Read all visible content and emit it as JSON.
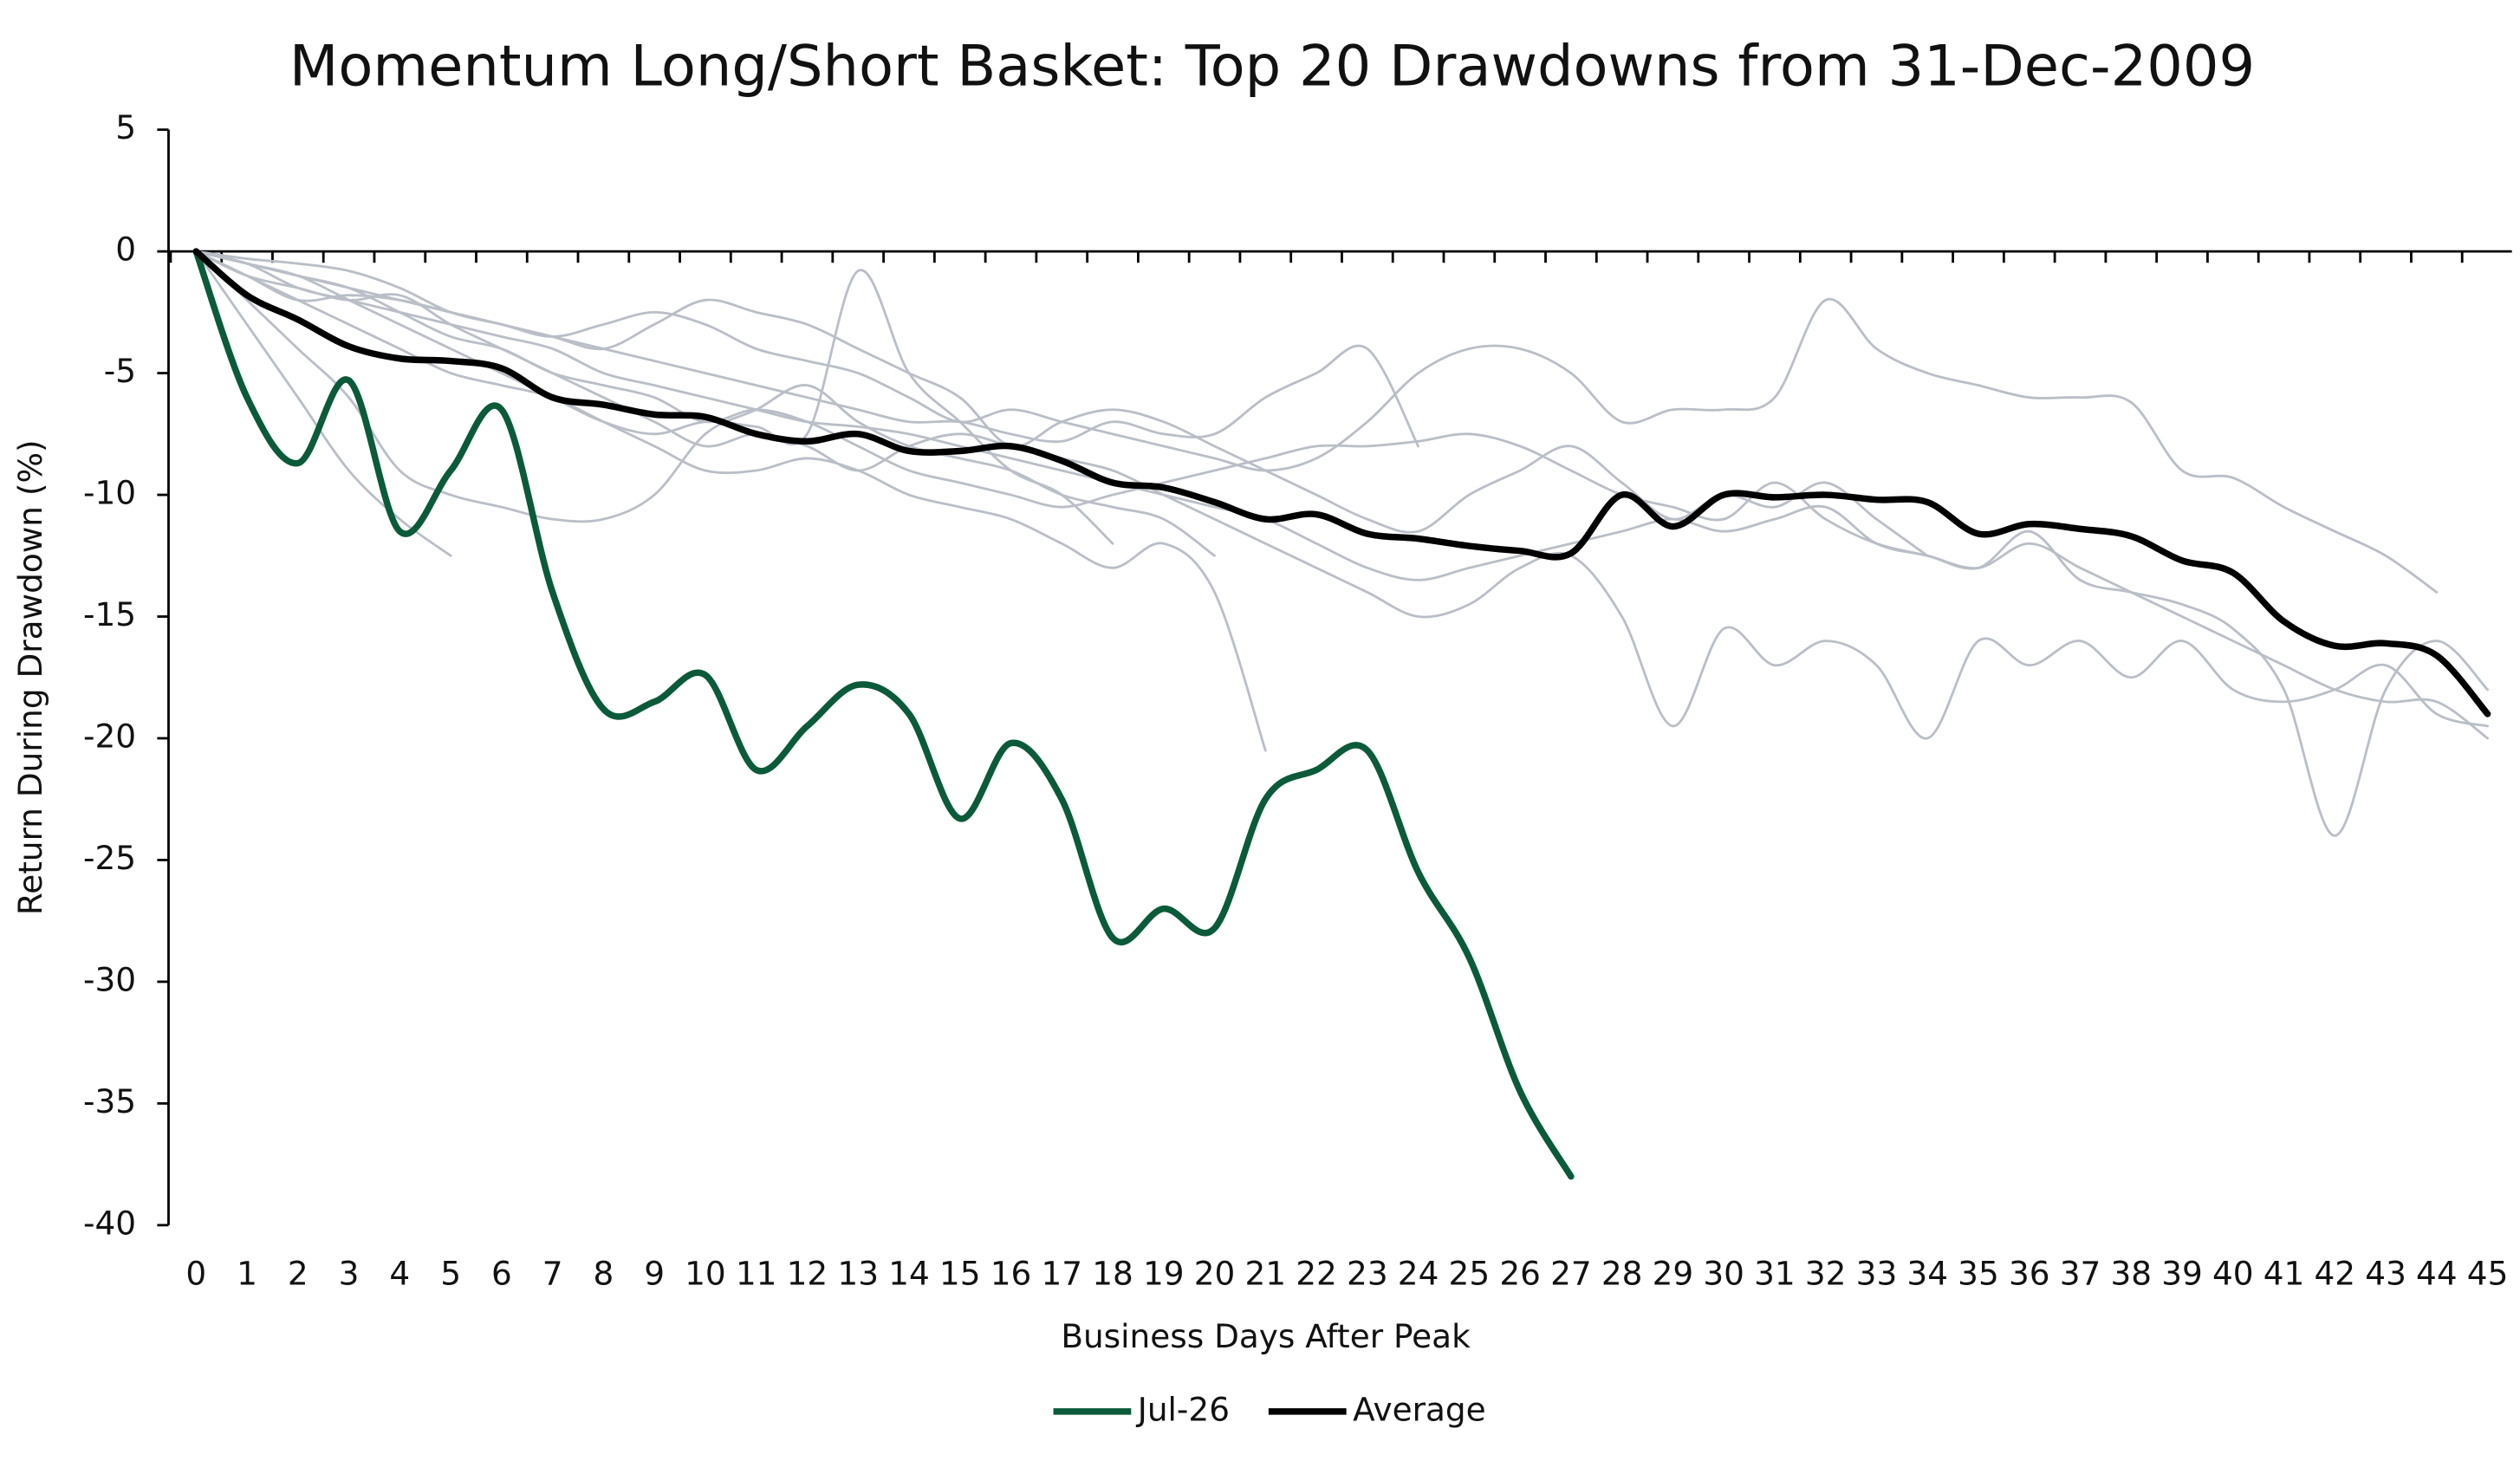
{
  "chart_data": {
    "type": "line",
    "title": "Momentum Long/Short Basket: Top 20 Drawdowns from 31-Dec-2009",
    "x_label": "Business Days After Peak",
    "y_label": "Return During Drawdown (%)",
    "x": [
      0,
      1,
      2,
      3,
      4,
      5,
      6,
      7,
      8,
      9,
      10,
      11,
      12,
      13,
      14,
      15,
      16,
      17,
      18,
      19,
      20,
      21,
      22,
      23,
      24,
      25,
      26,
      27,
      28,
      29,
      30,
      31,
      32,
      33,
      34,
      35,
      36,
      37,
      38,
      39,
      40,
      41,
      42,
      43,
      44,
      45
    ],
    "xlim": [
      0,
      45
    ],
    "xticks": [
      0,
      1,
      2,
      3,
      4,
      5,
      6,
      7,
      8,
      9,
      10,
      11,
      12,
      13,
      14,
      15,
      16,
      17,
      18,
      19,
      20,
      21,
      22,
      23,
      24,
      25,
      26,
      27,
      28,
      29,
      30,
      31,
      32,
      33,
      34,
      35,
      36,
      37,
      38,
      39,
      40,
      41,
      42,
      43,
      44,
      45
    ],
    "ylim": [
      -40,
      5
    ],
    "yticks": [
      5,
      0,
      -5,
      -10,
      -15,
      -20,
      -25,
      -30,
      -35,
      -40
    ],
    "legend": "bottom",
    "series": [
      {
        "color": "#b9bec7",
        "values": [
          0,
          -0.5,
          -1.5,
          -2,
          -2.5,
          -3,
          -3.5,
          -4,
          -5,
          -5.5,
          -6,
          -6.5,
          -7,
          -7.2,
          -7.5,
          -8,
          -8.5,
          -9,
          -9.5,
          -10,
          -10.5,
          -11,
          -12,
          -13,
          -13.5,
          -13,
          -12.5,
          -12,
          -11.5,
          -11,
          -11.5,
          -11,
          -10.5,
          -12,
          -12.5,
          -13,
          -12,
          -13,
          -14,
          -15,
          -16,
          -17,
          -18,
          -18.5,
          -18.5,
          -20
        ]
      },
      {
        "color": "#b9bec7",
        "values": [
          0,
          -1,
          -2,
          -1.8,
          -2,
          -2.5,
          -3,
          -3.5,
          -3,
          -2.5,
          -3,
          -4,
          -4.5,
          -5,
          -6,
          -7,
          -6.5,
          -7,
          -7.5,
          -8,
          -8.5,
          -9,
          -8.5,
          -7,
          -5,
          -4,
          -4,
          -5,
          -7,
          -6.5,
          -6.5,
          -6,
          -2,
          -4,
          -5,
          -5.5,
          -6,
          -6,
          -6.2,
          -9,
          -9.3,
          -10.5,
          -11.5,
          -12.5,
          -14,
          null
        ]
      },
      {
        "color": "#b9bec7",
        "values": [
          0,
          -1,
          -1.5,
          -2,
          -1.8,
          -3,
          -4,
          -5,
          -6,
          -7,
          -8,
          -7.5,
          -8,
          -9,
          -8,
          -7.5,
          -8,
          -8.5,
          -9,
          -10,
          -11,
          -12,
          -13,
          -14,
          -15,
          -14.5,
          -13,
          -12.5,
          -15,
          -19.5,
          -15.5,
          -17,
          -16,
          -17,
          -20,
          -16,
          -17,
          -16,
          -17.5,
          -16,
          -18,
          -18.5,
          -18,
          -17,
          -19,
          -19.5
        ]
      },
      {
        "color": "#b9bec7",
        "values": [
          0,
          -0.5,
          -1,
          -1.5,
          -2.5,
          -3.5,
          -4,
          -5,
          -5.5,
          -6,
          -7,
          -6.5,
          -7,
          -8,
          -9,
          -9.5,
          -10,
          -10.5,
          -10,
          -9.5,
          -9,
          -8.5,
          -8,
          -8,
          -7.8,
          -7.5,
          -8,
          -9,
          -10,
          -10.5,
          -11,
          -9.5,
          -11,
          -12,
          -12.5,
          -13,
          -11.5,
          -13.5,
          -14,
          -14.5,
          -15.5,
          -18,
          -24,
          -18,
          -16,
          -18
        ]
      },
      {
        "color": "#b9bec7",
        "values": [
          0,
          -0.5,
          -1,
          -1.5,
          -2,
          -2.5,
          -3,
          -3.5,
          -4,
          -4.5,
          -5,
          -5.5,
          -6,
          -6.5,
          -7,
          -7,
          -7.5,
          -7.8,
          -7,
          -7.5,
          -7.5,
          -6,
          -5,
          -4,
          -8,
          null,
          null,
          null,
          null,
          null,
          null,
          null,
          null,
          null,
          null,
          null,
          null,
          null,
          null,
          null,
          null,
          null,
          null,
          null,
          null,
          null
        ]
      },
      {
        "color": "#b9bec7",
        "values": [
          0,
          -1,
          -2,
          -3,
          -4,
          -5,
          -5.5,
          -6,
          -7,
          -8,
          -9,
          -9,
          -8.5,
          -9,
          -10,
          -10.5,
          -11,
          -12,
          -13,
          -12,
          -14,
          -20.5,
          null,
          null,
          null,
          null,
          null,
          null,
          null,
          null,
          null,
          null,
          null,
          null,
          null,
          null,
          null,
          null,
          null,
          null,
          null,
          null,
          null,
          null,
          null,
          null
        ]
      },
      {
        "color": "#b9bec7",
        "values": [
          0,
          -2,
          -4,
          -6,
          -9,
          -10,
          -10.5,
          -11,
          -11,
          -10,
          -7.5,
          -6.5,
          -5.5,
          -7,
          -8,
          -8.5,
          -9,
          -10,
          -10.5,
          -11,
          -12.5,
          null,
          null,
          null,
          null,
          null,
          null,
          null,
          null,
          null,
          null,
          null,
          null,
          null,
          null,
          null,
          null,
          null,
          null,
          null,
          null,
          null,
          null,
          null,
          null,
          null
        ]
      },
      {
        "color": "#b9bec7",
        "values": [
          0,
          -3,
          -6,
          -9,
          -11,
          -12.5,
          null,
          null,
          null,
          null,
          null,
          null,
          null,
          null,
          null,
          null,
          null,
          null,
          null,
          null,
          null,
          null,
          null,
          null,
          null,
          null,
          null,
          null,
          null,
          null,
          null,
          null,
          null,
          null,
          null,
          null,
          null,
          null,
          null,
          null,
          null,
          null,
          null,
          null,
          null,
          null
        ]
      },
      {
        "color": "#b9bec7",
        "values": [
          0,
          -0.5,
          -1,
          -2,
          -3,
          -4,
          -5,
          -6,
          -7,
          -7.5,
          -7,
          -7.2,
          -7.5,
          -0.8,
          -5,
          -7,
          -9,
          -10,
          -12,
          null,
          null,
          null,
          null,
          null,
          null,
          null,
          null,
          null,
          null,
          null,
          null,
          null,
          null,
          null,
          null,
          null,
          null,
          null,
          null,
          null,
          null,
          null,
          null,
          null,
          null,
          null
        ]
      },
      {
        "color": "#b9bec7",
        "values": [
          0,
          -0.3,
          -0.5,
          -0.8,
          -1.5,
          -2.5,
          -3,
          -3.5,
          -4,
          -3,
          -2,
          -2.5,
          -3,
          -4,
          -5,
          -6,
          -8,
          -7,
          -6.5,
          -7,
          -8,
          -9,
          -10,
          -11,
          -11.5,
          -10,
          -9,
          -8,
          -9.5,
          -11,
          -10,
          -10.5,
          -9.5,
          -11,
          -12.5,
          null,
          null,
          null,
          null,
          null,
          null,
          null,
          null,
          null,
          null,
          null
        ]
      },
      {
        "name": "Jul-26",
        "color": "#0b5a3a",
        "width": 4,
        "values": [
          0,
          -6,
          -8.7,
          -5.3,
          -11.5,
          -9,
          -6.5,
          -14,
          -18.8,
          -18.5,
          -17.4,
          -21.3,
          -19.5,
          -17.8,
          -19,
          -23.3,
          -20.2,
          -22.5,
          -28.2,
          -27,
          -27.8,
          -22.5,
          -21.3,
          -20.5,
          -25.5,
          -29,
          -34.5,
          -38,
          null,
          null,
          null,
          null,
          null,
          null,
          null,
          null,
          null,
          null,
          null,
          null,
          null,
          null,
          null,
          null,
          null,
          null
        ]
      },
      {
        "name": "Average",
        "color": "#000000",
        "width": 4,
        "values": [
          0,
          -1.8,
          -2.8,
          -3.9,
          -4.4,
          -4.5,
          -4.8,
          -6,
          -6.3,
          -6.7,
          -6.8,
          -7.5,
          -7.8,
          -7.5,
          -8.2,
          -8.2,
          -8,
          -8.6,
          -9.5,
          -9.7,
          -10.3,
          -11,
          -10.8,
          -11.6,
          -11.8,
          -12.1,
          -12.3,
          -12.4,
          -10,
          -11.3,
          -10,
          -10.1,
          -10,
          -10.2,
          -10.3,
          -11.6,
          -11.2,
          -11.4,
          -11.7,
          -12.7,
          -13.2,
          -15.2,
          -16.2,
          -16.1,
          -16.6,
          -19
        ]
      }
    ]
  }
}
